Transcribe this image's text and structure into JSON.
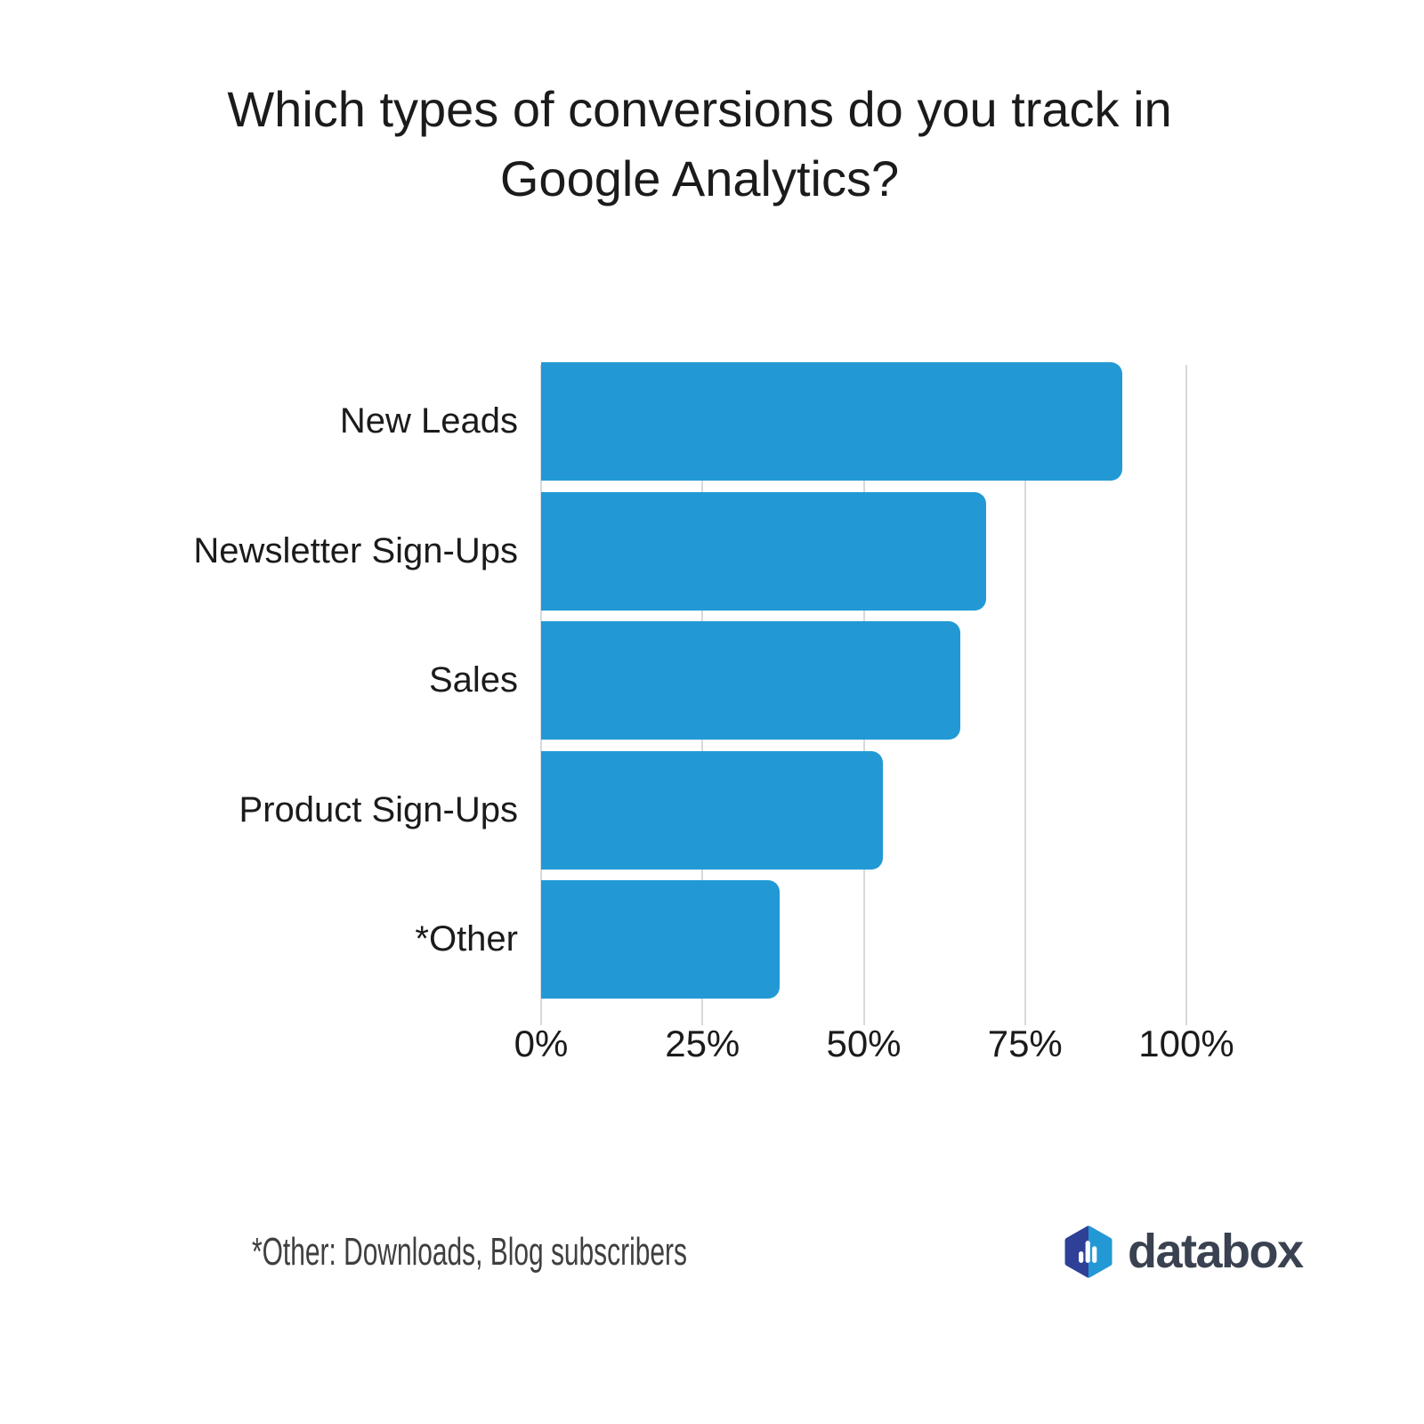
{
  "title_lines": [
    "Which types of conversions do you track in",
    "Google Analytics?"
  ],
  "chart_data": {
    "type": "bar",
    "orientation": "horizontal",
    "title": "Which types of conversions do you track in Google Analytics?",
    "categories": [
      "New Leads",
      "Newsletter Sign-Ups",
      "Sales",
      "Product Sign-Ups",
      "*Other"
    ],
    "values": [
      90,
      69,
      65,
      53,
      37
    ],
    "unit": "%",
    "xlabel": "",
    "ylabel": "",
    "xlim": [
      0,
      100
    ],
    "x_ticks": {
      "labels": [
        "0%",
        "25%",
        "50%",
        "75%",
        "100%"
      ],
      "values": [
        0,
        25,
        50,
        75,
        100
      ]
    },
    "grid": true,
    "legend": false,
    "bar_color": "#2299d5",
    "gridline_color": "#d6d9db"
  },
  "footnote": "*Other: Downloads, Blog subscribers",
  "brand": {
    "name": "databox",
    "icon": "databox-hexagon-bars-icon",
    "icon_dark_blue": "#2e4197",
    "icon_light_blue": "#2299d5",
    "icon_bars_color": "#ffffff",
    "text_color": "#3a4150"
  },
  "colors": {
    "background": "#ffffff",
    "text": "#1b1b1b",
    "footnote_text": "#3f3f3f"
  }
}
